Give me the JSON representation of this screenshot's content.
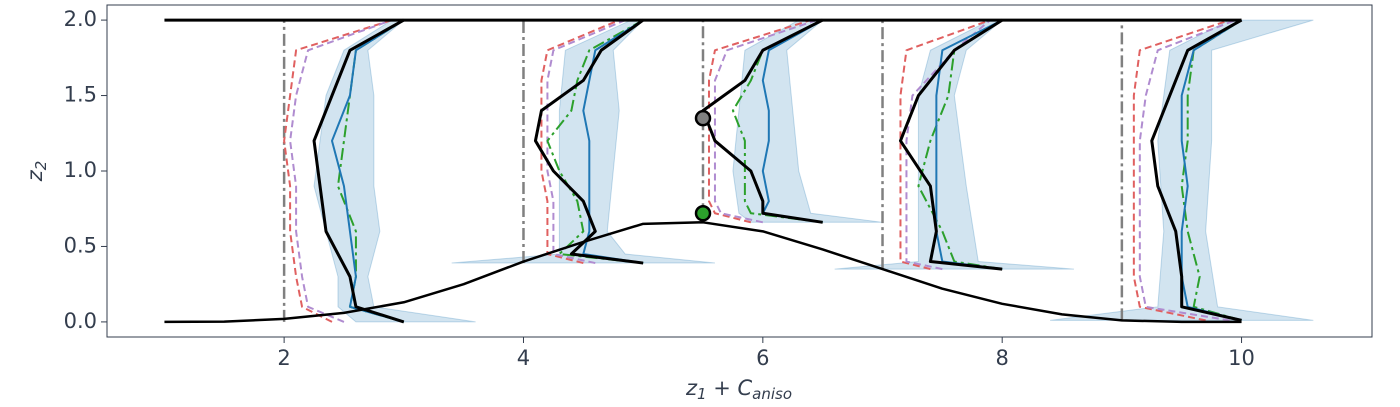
{
  "chart_data": {
    "type": "line",
    "xlabel": [
      "z",
      "1",
      " + ",
      "C",
      "aniso"
    ],
    "ylabel": [
      "z",
      "2"
    ],
    "xlim": [
      0.52,
      11.09
    ],
    "ylim": [
      -0.1,
      2.1
    ],
    "xticks": [
      2,
      4,
      6,
      8,
      10
    ],
    "yticks": [
      {
        "value": 0,
        "label": "0.0"
      },
      {
        "value": 0.5,
        "label": "0.5"
      },
      {
        "value": 1,
        "label": "1.0"
      },
      {
        "value": 1.5,
        "label": "1.5"
      },
      {
        "value": 2,
        "label": "2.0"
      }
    ],
    "series": [
      {
        "kind": "band",
        "color": "#1f77b4",
        "x": [
          2.6,
          2.45,
          2.45,
          2.35,
          2.25,
          2.3,
          2.35,
          2.5,
          2.9,
          3.0,
          2.7,
          2.75,
          2.75,
          2.75,
          2.8,
          2.7,
          2.75,
          3.6
        ],
        "values": [
          0,
          0.1,
          0.3,
          0.6,
          0.9,
          1.2,
          1.5,
          1.8,
          2.0,
          2.0,
          1.8,
          1.5,
          1.2,
          0.9,
          0.6,
          0.3,
          0.1,
          0
        ]
      },
      {
        "kind": "band",
        "color": "#1f77b4",
        "x": [
          3.4,
          4.3,
          4.3,
          4.3,
          4.3,
          4.35,
          4.9,
          5.0,
          4.75,
          4.8,
          4.75,
          4.7,
          4.85,
          5.6
        ],
        "values": [
          0.39,
          0.45,
          0.6,
          1.0,
          1.4,
          1.8,
          2.0,
          2.0,
          1.8,
          1.4,
          1.0,
          0.6,
          0.45,
          0.39
        ]
      },
      {
        "kind": "band",
        "color": "#1f77b4",
        "x": [
          5.9,
          5.8,
          5.75,
          5.8,
          5.85,
          6.3,
          6.5,
          6.2,
          6.25,
          6.3,
          6.4,
          7.0
        ],
        "values": [
          0.66,
          0.72,
          1.0,
          1.4,
          1.8,
          2.0,
          2.0,
          1.8,
          1.4,
          1.0,
          0.72,
          0.66
        ]
      },
      {
        "kind": "band",
        "color": "#1f77b4",
        "x": [
          6.6,
          7.3,
          7.3,
          7.3,
          7.4,
          7.9,
          8.0,
          7.7,
          7.6,
          7.7,
          7.8,
          8.6
        ],
        "values": [
          0.35,
          0.4,
          0.9,
          1.5,
          1.8,
          2.0,
          2.0,
          1.8,
          1.5,
          0.9,
          0.4,
          0.35
        ]
      },
      {
        "kind": "band",
        "color": "#1f77b4",
        "x": [
          8.4,
          9.3,
          9.35,
          9.3,
          9.4,
          9.9,
          10.6,
          9.75,
          9.75,
          9.7,
          9.8,
          10.6
        ],
        "values": [
          0.01,
          0.1,
          0.6,
          1.2,
          1.8,
          2.0,
          2.0,
          1.8,
          1.2,
          0.6,
          0.1,
          0.01
        ]
      },
      {
        "kind": "line",
        "color": "#808080",
        "style": "dashdot",
        "width": 2.5,
        "x": [
          2,
          2
        ],
        "values": [
          0,
          2
        ]
      },
      {
        "kind": "line",
        "color": "#808080",
        "style": "dashdot",
        "width": 2.5,
        "x": [
          4,
          4
        ],
        "values": [
          0.39,
          2
        ]
      },
      {
        "kind": "line",
        "color": "#808080",
        "style": "dashdot",
        "width": 2.5,
        "x": [
          5.5,
          5.5
        ],
        "values": [
          0.66,
          2
        ]
      },
      {
        "kind": "line",
        "color": "#808080",
        "style": "dashdot",
        "width": 2.5,
        "x": [
          7,
          7
        ],
        "values": [
          0.35,
          2
        ]
      },
      {
        "kind": "line",
        "color": "#808080",
        "style": "dashdot",
        "width": 2.5,
        "x": [
          9,
          9
        ],
        "values": [
          0.01,
          2
        ]
      },
      {
        "kind": "line",
        "color": "#e06060",
        "style": "dashed",
        "width": 2,
        "x": [
          2.4,
          2.15,
          2.1,
          2.05,
          2.05,
          2.0,
          2.05,
          2.1,
          2.9
        ],
        "values": [
          0,
          0.1,
          0.3,
          0.6,
          0.9,
          1.2,
          1.5,
          1.8,
          2.0
        ]
      },
      {
        "kind": "line",
        "color": "#b08cd0",
        "style": "dashed",
        "width": 2,
        "x": [
          2.5,
          2.2,
          2.15,
          2.1,
          2.1,
          2.05,
          2.1,
          2.2,
          2.9
        ],
        "values": [
          0,
          0.1,
          0.3,
          0.6,
          0.9,
          1.2,
          1.5,
          1.8,
          2.0
        ]
      },
      {
        "kind": "line",
        "color": "#2ca02c",
        "style": "dashdot",
        "width": 2,
        "x": [
          3.0,
          2.55,
          2.6,
          2.6,
          2.45,
          2.5,
          2.55,
          2.6,
          3.0
        ],
        "values": [
          0,
          0.1,
          0.3,
          0.6,
          0.9,
          1.2,
          1.5,
          1.8,
          2.0
        ]
      },
      {
        "kind": "line",
        "color": "#1f77b4",
        "style": "solid",
        "width": 2,
        "x": [
          3.0,
          2.55,
          2.6,
          2.55,
          2.5,
          2.4,
          2.55,
          2.6,
          3.0
        ],
        "values": [
          0,
          0.1,
          0.3,
          0.6,
          0.9,
          1.2,
          1.5,
          1.8,
          2.0
        ]
      },
      {
        "kind": "line",
        "color": "#000000",
        "style": "solid",
        "width": 3,
        "x": [
          3.0,
          2.6,
          2.55,
          2.35,
          2.3,
          2.25,
          2.4,
          2.55,
          3.0
        ],
        "values": [
          0,
          0.1,
          0.3,
          0.6,
          0.9,
          1.2,
          1.5,
          1.8,
          2.0
        ]
      },
      {
        "kind": "line",
        "color": "#e06060",
        "style": "dashed",
        "width": 2,
        "x": [
          4.5,
          4.2,
          4.2,
          4.2,
          4.15,
          4.15,
          4.15,
          4.15,
          4.2,
          4.8
        ],
        "values": [
          0.39,
          0.45,
          0.6,
          0.8,
          1.0,
          1.2,
          1.4,
          1.6,
          1.8,
          2.0
        ]
      },
      {
        "kind": "line",
        "color": "#b08cd0",
        "style": "dashed",
        "width": 2,
        "x": [
          4.6,
          4.25,
          4.25,
          4.25,
          4.2,
          4.2,
          4.2,
          4.2,
          4.25,
          4.85
        ],
        "values": [
          0.39,
          0.45,
          0.6,
          0.8,
          1.0,
          1.2,
          1.4,
          1.6,
          1.8,
          2.0
        ]
      },
      {
        "kind": "line",
        "color": "#2ca02c",
        "style": "dashdot",
        "width": 2,
        "x": [
          5.0,
          4.3,
          4.5,
          4.45,
          4.3,
          4.2,
          4.4,
          4.45,
          4.55,
          5.0
        ],
        "values": [
          0.39,
          0.45,
          0.6,
          0.8,
          1.0,
          1.2,
          1.4,
          1.6,
          1.8,
          2.0
        ]
      },
      {
        "kind": "line",
        "color": "#1f77b4",
        "style": "solid",
        "width": 2,
        "x": [
          5.0,
          4.5,
          4.55,
          4.55,
          4.55,
          4.55,
          4.5,
          4.55,
          4.6,
          5.0
        ],
        "values": [
          0.39,
          0.45,
          0.6,
          0.8,
          1.0,
          1.2,
          1.4,
          1.6,
          1.8,
          2.0
        ]
      },
      {
        "kind": "line",
        "color": "#000000",
        "style": "solid",
        "width": 3,
        "x": [
          5.0,
          4.4,
          4.6,
          4.5,
          4.25,
          4.1,
          4.15,
          4.5,
          4.65,
          5.0
        ],
        "values": [
          0.39,
          0.45,
          0.6,
          0.8,
          1.0,
          1.2,
          1.4,
          1.6,
          1.8,
          2.0
        ]
      },
      {
        "kind": "line",
        "color": "#e06060",
        "style": "dashed",
        "width": 2,
        "x": [
          5.9,
          5.6,
          5.55,
          5.55,
          5.55,
          5.55,
          5.55,
          5.6,
          6.4
        ],
        "values": [
          0.66,
          0.72,
          0.8,
          1.0,
          1.2,
          1.4,
          1.6,
          1.8,
          2.0
        ]
      },
      {
        "kind": "line",
        "color": "#b08cd0",
        "style": "dashed",
        "width": 2,
        "x": [
          6.0,
          5.65,
          5.6,
          5.6,
          5.6,
          5.6,
          5.6,
          5.7,
          6.45
        ],
        "values": [
          0.66,
          0.72,
          0.8,
          1.0,
          1.2,
          1.4,
          1.6,
          1.8,
          2.0
        ]
      },
      {
        "kind": "line",
        "color": "#2ca02c",
        "style": "dashdot",
        "width": 2,
        "x": [
          6.5,
          5.9,
          5.85,
          5.85,
          5.85,
          5.75,
          5.9,
          6.0,
          6.5
        ],
        "values": [
          0.66,
          0.72,
          0.8,
          1.0,
          1.2,
          1.4,
          1.6,
          1.8,
          2.0
        ]
      },
      {
        "kind": "line",
        "color": "#1f77b4",
        "style": "solid",
        "width": 2,
        "x": [
          6.5,
          6.0,
          6.05,
          6.0,
          6.05,
          6.05,
          6.0,
          6.05,
          6.5
        ],
        "values": [
          0.66,
          0.72,
          0.8,
          1.0,
          1.2,
          1.4,
          1.6,
          1.8,
          2.0
        ]
      },
      {
        "kind": "line",
        "color": "#000000",
        "style": "solid",
        "width": 3,
        "x": [
          6.5,
          6.0,
          6.0,
          5.9,
          5.6,
          5.5,
          5.85,
          6.0,
          6.5
        ],
        "values": [
          0.66,
          0.72,
          0.8,
          1.0,
          1.2,
          1.4,
          1.6,
          1.8,
          2.0
        ]
      },
      {
        "kind": "line",
        "color": "#e06060",
        "style": "dashed",
        "width": 2,
        "x": [
          7.4,
          7.15,
          7.15,
          7.15,
          7.15,
          7.15,
          7.2,
          7.9
        ],
        "values": [
          0.35,
          0.4,
          0.6,
          0.9,
          1.2,
          1.5,
          1.8,
          2.0
        ]
      },
      {
        "kind": "line",
        "color": "#b08cd0",
        "style": "dashed",
        "width": 2,
        "x": [
          7.5,
          7.2,
          7.2,
          7.2,
          7.2,
          7.25,
          7.6,
          7.9
        ],
        "values": [
          0.35,
          0.4,
          0.6,
          0.9,
          1.2,
          1.5,
          1.8,
          2.0
        ]
      },
      {
        "kind": "line",
        "color": "#2ca02c",
        "style": "dashdot",
        "width": 2,
        "x": [
          8.0,
          7.6,
          7.5,
          7.3,
          7.4,
          7.55,
          7.6,
          8.0
        ],
        "values": [
          0.35,
          0.4,
          0.6,
          0.9,
          1.2,
          1.5,
          1.8,
          2.0
        ]
      },
      {
        "kind": "line",
        "color": "#1f77b4",
        "style": "solid",
        "width": 2,
        "x": [
          8.0,
          7.5,
          7.45,
          7.45,
          7.45,
          7.45,
          7.5,
          8.0
        ],
        "values": [
          0.35,
          0.4,
          0.6,
          0.9,
          1.2,
          1.5,
          1.8,
          2.0
        ]
      },
      {
        "kind": "line",
        "color": "#000000",
        "style": "solid",
        "width": 3,
        "x": [
          8.0,
          7.4,
          7.45,
          7.4,
          7.15,
          7.3,
          7.6,
          8.0
        ],
        "values": [
          0.35,
          0.4,
          0.6,
          0.9,
          1.2,
          1.5,
          1.8,
          2.0
        ]
      },
      {
        "kind": "line",
        "color": "#e06060",
        "style": "dashed",
        "width": 2,
        "x": [
          9.7,
          9.15,
          9.1,
          9.1,
          9.1,
          9.1,
          9.1,
          9.15,
          9.9
        ],
        "values": [
          0.01,
          0.1,
          0.3,
          0.6,
          0.9,
          1.2,
          1.5,
          1.8,
          2.0
        ]
      },
      {
        "kind": "line",
        "color": "#b08cd0",
        "style": "dashed",
        "width": 2,
        "x": [
          9.9,
          9.2,
          9.15,
          9.15,
          9.15,
          9.15,
          9.2,
          9.3,
          9.95
        ],
        "values": [
          0.01,
          0.1,
          0.3,
          0.6,
          0.9,
          1.2,
          1.5,
          1.8,
          2.0
        ]
      },
      {
        "kind": "line",
        "color": "#2ca02c",
        "style": "dashdot",
        "width": 2,
        "x": [
          10.0,
          9.6,
          9.65,
          9.55,
          9.5,
          9.55,
          9.55,
          9.6,
          10.0
        ],
        "values": [
          0.01,
          0.1,
          0.3,
          0.6,
          0.9,
          1.2,
          1.5,
          1.8,
          2.0
        ]
      },
      {
        "kind": "line",
        "color": "#1f77b4",
        "style": "solid",
        "width": 2,
        "x": [
          10.0,
          9.55,
          9.5,
          9.5,
          9.55,
          9.5,
          9.5,
          9.6,
          10.0
        ],
        "values": [
          0.01,
          0.1,
          0.3,
          0.6,
          0.9,
          1.2,
          1.5,
          1.8,
          2.0
        ]
      },
      {
        "kind": "line",
        "color": "#000000",
        "style": "solid",
        "width": 3,
        "x": [
          10.0,
          9.5,
          9.5,
          9.45,
          9.3,
          9.25,
          9.4,
          9.55,
          10.0
        ],
        "values": [
          0.01,
          0.1,
          0.3,
          0.6,
          0.9,
          1.2,
          1.5,
          1.8,
          2.0
        ]
      },
      {
        "kind": "line",
        "color": "#000000",
        "style": "solid",
        "width": 2.5,
        "x": [
          1,
          1.5,
          2,
          2.5,
          3,
          3.5,
          4,
          4.5,
          5,
          5.5,
          6,
          6.5,
          7,
          7.5,
          8,
          8.5,
          9,
          9.5,
          10
        ],
        "values": [
          0,
          0.002,
          0.02,
          0.06,
          0.13,
          0.25,
          0.4,
          0.53,
          0.65,
          0.66,
          0.6,
          0.48,
          0.35,
          0.22,
          0.12,
          0.05,
          0.01,
          0,
          0
        ]
      },
      {
        "kind": "line",
        "color": "#000000",
        "style": "solid",
        "width": 3,
        "x": [
          1,
          10
        ],
        "values": [
          2,
          2
        ]
      },
      {
        "kind": "points",
        "color": "#808080",
        "x": [
          5.5
        ],
        "values": [
          1.35
        ]
      },
      {
        "kind": "points",
        "color": "#2ca02c",
        "x": [
          5.5
        ],
        "values": [
          0.72
        ]
      }
    ]
  }
}
